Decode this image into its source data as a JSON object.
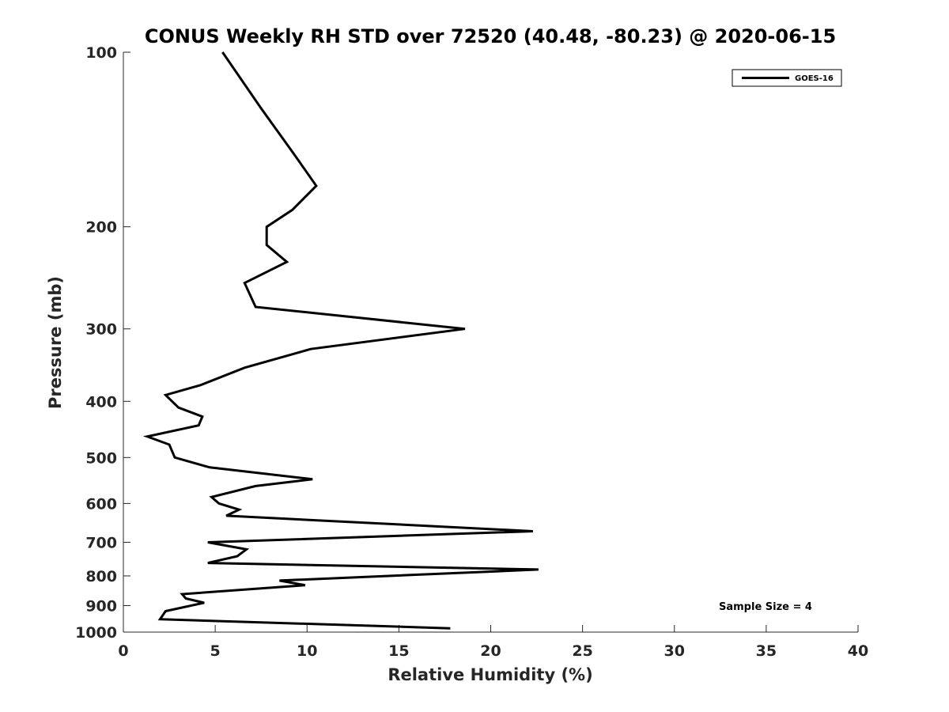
{
  "chart_data": {
    "type": "line",
    "title": "CONUS Weekly RH STD over 72520 (40.48, -80.23) @ 2020-06-15",
    "xlabel": "Relative Humidity (%)",
    "ylabel": "Pressure (mb)",
    "xlim": [
      0,
      40
    ],
    "ylim": [
      100,
      1000
    ],
    "yscale": "log",
    "y_reversed": true,
    "xticks": [
      0,
      5,
      10,
      15,
      20,
      25,
      30,
      35,
      40
    ],
    "yticks": [
      100,
      200,
      300,
      400,
      500,
      600,
      700,
      800,
      900,
      1000
    ],
    "grid": false,
    "legend_position": "top-right",
    "annotation": "Sample Size = 4",
    "series": [
      {
        "name": "GOES-16",
        "color": "#000000",
        "points": [
          [
            5.4,
            100
          ],
          [
            7.5,
            125
          ],
          [
            9.3,
            150
          ],
          [
            10.5,
            170
          ],
          [
            9.2,
            187
          ],
          [
            7.8,
            200
          ],
          [
            7.8,
            215
          ],
          [
            8.9,
            230
          ],
          [
            6.6,
            250
          ],
          [
            7.2,
            275
          ],
          [
            18.6,
            300
          ],
          [
            10.2,
            325
          ],
          [
            6.6,
            350
          ],
          [
            4.2,
            375
          ],
          [
            2.3,
            390
          ],
          [
            3.0,
            410
          ],
          [
            4.3,
            425
          ],
          [
            4.1,
            440
          ],
          [
            1.3,
            460
          ],
          [
            2.5,
            475
          ],
          [
            2.8,
            500
          ],
          [
            4.7,
            520
          ],
          [
            10.3,
            545
          ],
          [
            7.2,
            560
          ],
          [
            4.8,
            585
          ],
          [
            5.2,
            600
          ],
          [
            6.3,
            615
          ],
          [
            5.6,
            630
          ],
          [
            22.3,
            670
          ],
          [
            4.6,
            700
          ],
          [
            6.7,
            720
          ],
          [
            6.2,
            740
          ],
          [
            4.6,
            760
          ],
          [
            22.6,
            780
          ],
          [
            8.5,
            815
          ],
          [
            9.9,
            830
          ],
          [
            3.2,
            860
          ],
          [
            3.4,
            875
          ],
          [
            4.4,
            890
          ],
          [
            2.3,
            920
          ],
          [
            2.0,
            950
          ],
          [
            17.8,
            985
          ]
        ]
      }
    ]
  }
}
